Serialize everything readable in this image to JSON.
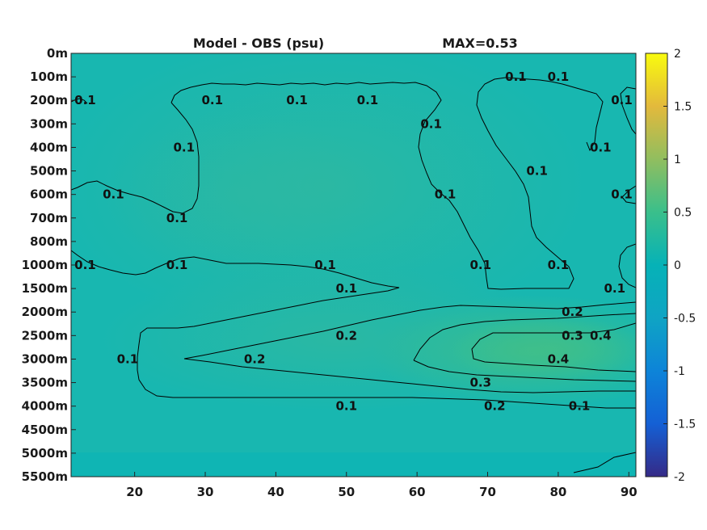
{
  "chart_data": {
    "type": "heatmap",
    "title": "Model - OBS (psu)",
    "annotation": "MAX=0.53",
    "x_ticks": [
      "20",
      "30",
      "40",
      "50",
      "60",
      "70",
      "80",
      "90"
    ],
    "x_tick_values": [
      20,
      30,
      40,
      50,
      60,
      70,
      80,
      90
    ],
    "xlim": [
      11,
      91
    ],
    "y_ticks": [
      "0m",
      "100m",
      "200m",
      "300m",
      "400m",
      "500m",
      "600m",
      "700m",
      "800m",
      "1000m",
      "1500m",
      "2000m",
      "2500m",
      "3000m",
      "3500m",
      "4000m",
      "4500m",
      "5000m",
      "5500m"
    ],
    "colorbar": {
      "ticks": [
        "2",
        "1.5",
        "1",
        "0.5",
        "0",
        "-0.5",
        "-1",
        "-1.5",
        "-2"
      ],
      "tick_values": [
        2,
        1.5,
        1,
        0.5,
        0,
        -0.5,
        -1,
        -1.5,
        -2
      ],
      "range": [
        -2,
        2
      ],
      "colormap": "parula"
    },
    "contour_levels": [
      0.1,
      0.2,
      0.3,
      0.4
    ],
    "contour_labels": [
      {
        "text": "0.1",
        "x": 13,
        "y": "200m"
      },
      {
        "text": "0.1",
        "x": 31,
        "y": "200m"
      },
      {
        "text": "0.1",
        "x": 43,
        "y": "200m"
      },
      {
        "text": "0.1",
        "x": 53,
        "y": "200m"
      },
      {
        "text": "0.1",
        "x": 27,
        "y": "400m"
      },
      {
        "text": "0.1",
        "x": 17,
        "y": "600m"
      },
      {
        "text": "0.1",
        "x": 26,
        "y": "700m"
      },
      {
        "text": "0.1",
        "x": 13,
        "y": "1000m"
      },
      {
        "text": "0.1",
        "x": 26,
        "y": "1000m"
      },
      {
        "text": "0.1",
        "x": 47,
        "y": "1000m"
      },
      {
        "text": "0.1",
        "x": 50,
        "y": "1500m"
      },
      {
        "text": "0.2",
        "x": 50,
        "y": "2500m"
      },
      {
        "text": "0.1",
        "x": 19,
        "y": "3000m"
      },
      {
        "text": "0.2",
        "x": 37,
        "y": "3000m"
      },
      {
        "text": "0.1",
        "x": 50,
        "y": "4000m"
      },
      {
        "text": "0.1",
        "x": 62,
        "y": "300m"
      },
      {
        "text": "0.1",
        "x": 64,
        "y": "600m"
      },
      {
        "text": "0.1",
        "x": 69,
        "y": "1000m"
      },
      {
        "text": "0.1",
        "x": 74,
        "y": "100m"
      },
      {
        "text": "0.1",
        "x": 80,
        "y": "100m"
      },
      {
        "text": "0.1",
        "x": 86,
        "y": "400m"
      },
      {
        "text": "0.1",
        "x": 77,
        "y": "500m"
      },
      {
        "text": "0.1",
        "x": 89,
        "y": "200m"
      },
      {
        "text": "0.1",
        "x": 89,
        "y": "600m"
      },
      {
        "text": "0.1",
        "x": 80,
        "y": "1000m"
      },
      {
        "text": "0.1",
        "x": 88,
        "y": "1500m"
      },
      {
        "text": "0.2",
        "x": 82,
        "y": "2000m"
      },
      {
        "text": "0.3",
        "x": 82,
        "y": "2500m"
      },
      {
        "text": "0.4",
        "x": 86,
        "y": "2500m"
      },
      {
        "text": "0.3",
        "x": 69,
        "y": "3500m"
      },
      {
        "text": "0.4",
        "x": 80,
        "y": "3000m"
      },
      {
        "text": "0.2",
        "x": 71,
        "y": "4000m"
      },
      {
        "text": "0.1",
        "x": 83,
        "y": "4000m"
      }
    ]
  }
}
